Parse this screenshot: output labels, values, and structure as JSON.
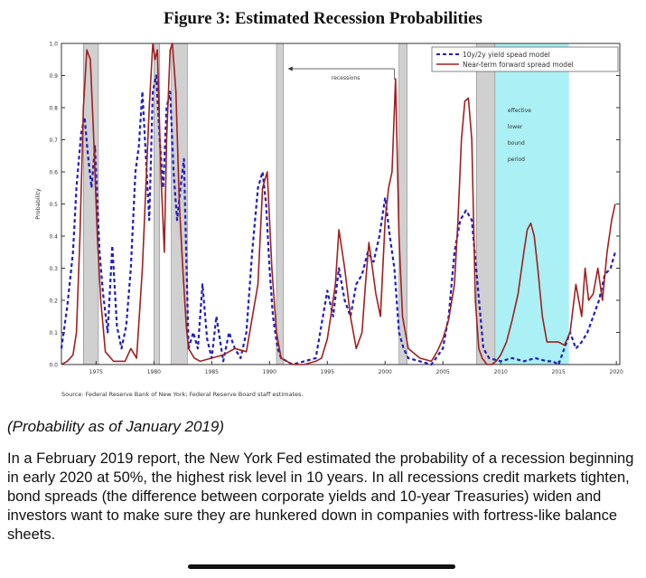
{
  "caption": "(Probability as of January 2019)",
  "paragraph": "In a February 2019 report, the New York Fed estimated the probability of a recession beginning in early 2020 at 50%, the highest risk level in 10 years. In all recessions credit markets tighten, bond spreads (the difference between corporate yields and 10-year Treasuries) widen and investors want to make sure they are hunkered down in companies with fortress-like balance sheets.",
  "colors": {
    "model_a": "#1f1fbf",
    "model_b": "#a02020",
    "recession": "#d0d0d0",
    "elb": "#aaf0f4"
  },
  "chart_data": {
    "type": "line",
    "title": "Figure 3:  Estimated Recession Probabilities",
    "ylabel": "Probability",
    "xlim": [
      1972.0,
      2020.3
    ],
    "ylim": [
      0,
      1.0
    ],
    "yticks": [
      "0.0",
      "0.1",
      "0.2",
      "0.3",
      "0.4",
      "0.5",
      "0.6",
      "0.7",
      "0.8",
      "0.9",
      "1.0"
    ],
    "xticks": [
      "1975",
      "1980",
      "1985",
      "1990",
      "1995",
      "2000",
      "2005",
      "2010",
      "2015",
      "2020"
    ],
    "source": "Source: Federal Reserve Bank of New York; Federal Reserve Board staff estimates.",
    "legend_position": "top-right",
    "recessions": [
      [
        1973.9,
        1975.2
      ],
      [
        1980.0,
        1980.5
      ],
      [
        1981.5,
        1982.9
      ],
      [
        1990.6,
        1991.2
      ],
      [
        2001.2,
        2001.9
      ],
      [
        2007.9,
        2009.5
      ]
    ],
    "elb_period": [
      2008.9,
      2015.9
    ],
    "annotations": {
      "recessions": "recessions",
      "elb": [
        "effective",
        "lower",
        "bound",
        "period"
      ]
    },
    "series": [
      {
        "name": "10y/2y yield spead model",
        "style": "dashed",
        "x": [
          1972.0,
          1972.5,
          1973.0,
          1973.3,
          1973.7,
          1974.0,
          1974.3,
          1974.6,
          1974.9,
          1975.3,
          1975.6,
          1976.0,
          1976.4,
          1976.8,
          1977.2,
          1977.6,
          1978.0,
          1978.4,
          1978.7,
          1979.0,
          1979.3,
          1979.6,
          1979.9,
          1980.2,
          1980.5,
          1980.8,
          1981.1,
          1981.4,
          1981.7,
          1982.0,
          1982.3,
          1982.6,
          1983.0,
          1983.4,
          1983.8,
          1984.2,
          1984.6,
          1985.0,
          1985.4,
          1986.0,
          1986.5,
          1987.0,
          1987.5,
          1988.0,
          1988.5,
          1989.0,
          1989.4,
          1989.7,
          1990.0,
          1990.3,
          1990.7,
          1991.0,
          1991.5,
          1992.0,
          1993.0,
          1994.0,
          1995.0,
          1995.5,
          1996.0,
          1996.5,
          1997.0,
          1997.5,
          1998.0,
          1998.5,
          1999.0,
          1999.5,
          2000.0,
          2000.4,
          2000.8,
          2001.2,
          2001.6,
          2002.0,
          2003.0,
          2004.0,
          2005.0,
          2005.5,
          2006.0,
          2006.5,
          2007.0,
          2007.5,
          2008.0,
          2008.5,
          2009.0,
          2010.0,
          2011.0,
          2012.0,
          2013.0,
          2014.0,
          2014.5,
          2015.0,
          2015.5,
          2016.0,
          2016.5,
          2017.0,
          2017.5,
          2018.0,
          2018.5,
          2019.0,
          2019.5,
          2019.9
        ],
        "y": [
          0.05,
          0.18,
          0.35,
          0.55,
          0.72,
          0.77,
          0.65,
          0.55,
          0.68,
          0.35,
          0.22,
          0.1,
          0.37,
          0.12,
          0.05,
          0.12,
          0.3,
          0.6,
          0.68,
          0.85,
          0.65,
          0.45,
          0.85,
          0.9,
          0.7,
          0.55,
          0.8,
          0.85,
          0.6,
          0.45,
          0.55,
          0.64,
          0.05,
          0.1,
          0.05,
          0.25,
          0.08,
          0.02,
          0.15,
          0.01,
          0.1,
          0.05,
          0.02,
          0.1,
          0.35,
          0.55,
          0.6,
          0.5,
          0.3,
          0.15,
          0.05,
          0.02,
          0.01,
          0.0,
          0.01,
          0.02,
          0.23,
          0.15,
          0.3,
          0.2,
          0.15,
          0.25,
          0.28,
          0.35,
          0.32,
          0.4,
          0.52,
          0.4,
          0.3,
          0.1,
          0.05,
          0.02,
          0.01,
          0.0,
          0.05,
          0.15,
          0.35,
          0.45,
          0.48,
          0.45,
          0.25,
          0.05,
          0.02,
          0.01,
          0.02,
          0.01,
          0.02,
          0.01,
          0.01,
          0.0,
          0.05,
          0.1,
          0.05,
          0.07,
          0.1,
          0.15,
          0.2,
          0.28,
          0.3,
          0.35
        ]
      },
      {
        "name": "Near-term forward spread model",
        "style": "solid",
        "x": [
          1972.0,
          1972.5,
          1973.0,
          1973.3,
          1973.6,
          1973.9,
          1974.2,
          1974.5,
          1974.8,
          1975.1,
          1975.4,
          1975.8,
          1976.5,
          1977.5,
          1978.0,
          1978.5,
          1979.0,
          1979.3,
          1979.6,
          1979.9,
          1980.1,
          1980.3,
          1980.6,
          1980.9,
          1981.1,
          1981.4,
          1981.6,
          1981.9,
          1982.2,
          1982.5,
          1982.8,
          1983.0,
          1983.5,
          1984.0,
          1985.0,
          1986.0,
          1987.0,
          1988.0,
          1989.0,
          1989.4,
          1989.8,
          1990.2,
          1990.6,
          1991.0,
          1991.5,
          1992.0,
          1993.0,
          1994.0,
          1994.5,
          1995.0,
          1995.3,
          1995.7,
          1996.0,
          1996.5,
          1997.0,
          1997.5,
          1998.0,
          1998.3,
          1998.6,
          1998.9,
          1999.2,
          1999.6,
          2000.0,
          2000.3,
          2000.6,
          2000.9,
          2001.2,
          2001.5,
          2002.0,
          2003.0,
          2004.0,
          2004.5,
          2005.0,
          2005.5,
          2006.0,
          2006.3,
          2006.6,
          2006.9,
          2007.2,
          2007.5,
          2007.8,
          2008.1,
          2008.4,
          2008.8,
          2009.2,
          2009.6,
          2010.0,
          2010.5,
          2011.0,
          2011.5,
          2012.0,
          2012.3,
          2012.6,
          2012.9,
          2013.2,
          2013.6,
          2014.0,
          2014.5,
          2015.0,
          2015.5,
          2016.0,
          2016.5,
          2017.0,
          2017.3,
          2017.6,
          2018.0,
          2018.4,
          2018.8,
          2019.2,
          2019.6,
          2019.9
        ],
        "y": [
          0.0,
          0.01,
          0.03,
          0.1,
          0.4,
          0.8,
          0.98,
          0.95,
          0.7,
          0.4,
          0.2,
          0.04,
          0.01,
          0.01,
          0.05,
          0.02,
          0.3,
          0.55,
          0.8,
          1.0,
          0.95,
          0.98,
          0.6,
          0.35,
          0.7,
          0.98,
          1.0,
          0.85,
          0.5,
          0.3,
          0.12,
          0.05,
          0.02,
          0.01,
          0.02,
          0.03,
          0.05,
          0.04,
          0.25,
          0.55,
          0.6,
          0.3,
          0.1,
          0.02,
          0.01,
          0.0,
          0.0,
          0.01,
          0.02,
          0.08,
          0.15,
          0.25,
          0.42,
          0.3,
          0.15,
          0.05,
          0.1,
          0.25,
          0.38,
          0.3,
          0.22,
          0.15,
          0.45,
          0.55,
          0.6,
          0.89,
          0.4,
          0.15,
          0.05,
          0.02,
          0.01,
          0.04,
          0.08,
          0.14,
          0.25,
          0.45,
          0.7,
          0.82,
          0.83,
          0.7,
          0.2,
          0.05,
          0.02,
          0.0,
          0.0,
          0.01,
          0.03,
          0.07,
          0.14,
          0.22,
          0.35,
          0.42,
          0.44,
          0.4,
          0.3,
          0.15,
          0.07,
          0.07,
          0.07,
          0.06,
          0.1,
          0.25,
          0.15,
          0.3,
          0.2,
          0.22,
          0.3,
          0.2,
          0.35,
          0.45,
          0.5
        ]
      }
    ]
  }
}
